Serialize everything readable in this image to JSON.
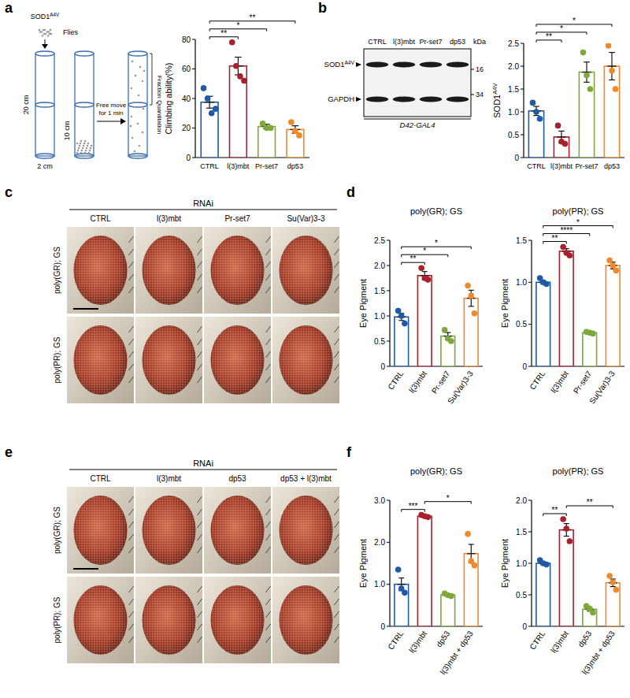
{
  "panel_labels": [
    "a",
    "b",
    "c",
    "d",
    "e",
    "f"
  ],
  "schematic": {
    "genotype": "SOD1",
    "genotype_sup": "A4V",
    "flies": "Flies",
    "height_total": "20 cm",
    "height_half": "10 cm",
    "width": "2 cm",
    "action": [
      "Free move",
      "for 1 min"
    ],
    "measure": [
      "Fraction",
      "Quantitation"
    ]
  },
  "blot": {
    "lanes": [
      "CTRL",
      "l(3)mbt",
      "Pr-set7",
      "dp53"
    ],
    "bands": [
      {
        "name": "SOD1",
        "sup": "A4V"
      },
      {
        "name": "GAPDH"
      }
    ],
    "unit": "kDa",
    "markers": [
      16,
      34
    ],
    "driver": "D42-GAL4"
  },
  "eye_panels": [
    {
      "header": "RNAi",
      "columns": [
        "CTRL",
        "l(3)mbt",
        "Pr-set7",
        "Su(Var)3-3"
      ],
      "rows": [
        "poly(GR); GS",
        "poly(PR); GS"
      ]
    },
    {
      "header": "RNAi",
      "columns": [
        "CTRL",
        "l(3)mbt",
        "dp53",
        "dp53 + l(3)mbt"
      ],
      "rows": [
        "poly(GR); GS",
        "poly(PR); GS"
      ]
    }
  ],
  "chart_data": [
    {
      "type": "bar",
      "y_label": "Climbing ability(%)",
      "categories": [
        "CTRL",
        "l(3)mbt",
        "Pr-set7",
        "dp53"
      ],
      "values": [
        37.5,
        62,
        21,
        19
      ],
      "errors": [
        4,
        6,
        1.5,
        2.5
      ],
      "points": [
        [
          47,
          40,
          30,
          33
        ],
        [
          78,
          62,
          55,
          52
        ],
        [
          23,
          20,
          20
        ],
        [
          24,
          18,
          15
        ]
      ],
      "colors": [
        "#1f5aa6",
        "#a8202c",
        "#7ea83a",
        "#f0892a"
      ],
      "ylim": [
        0,
        80
      ],
      "yticks": [
        0,
        20,
        40,
        60,
        80
      ],
      "comparisons": [
        {
          "pair": [
            0,
            1
          ],
          "label": "**"
        },
        {
          "pair": [
            0,
            2
          ],
          "label": "*"
        },
        {
          "pair": [
            0,
            3
          ],
          "label": "**"
        }
      ]
    },
    {
      "type": "bar",
      "y_label": "SOD1",
      "y_label_sup": "A4V",
      "categories": [
        "CTRL",
        "l(3)mbt",
        "Pr-set7",
        "dp53"
      ],
      "values": [
        1.02,
        0.45,
        1.87,
        2.0
      ],
      "errors": [
        0.1,
        0.13,
        0.22,
        0.3
      ],
      "points": [
        [
          1.2,
          1.0,
          0.85
        ],
        [
          0.7,
          0.35,
          0.3
        ],
        [
          2.3,
          1.8,
          1.5
        ],
        [
          2.45,
          1.9,
          1.5
        ]
      ],
      "colors": [
        "#1f5aa6",
        "#a8202c",
        "#7ea83a",
        "#f0892a"
      ],
      "ylim": [
        0,
        2.5
      ],
      "yticks": [
        0,
        0.5,
        {
          "value": 1,
          "label": "1.0"
        },
        1.5,
        {
          "value": 2,
          "label": "2.0"
        },
        2.5
      ],
      "comparisons": [
        {
          "pair": [
            0,
            1
          ],
          "label": "**"
        },
        {
          "pair": [
            0,
            2
          ],
          "label": "*"
        },
        {
          "pair": [
            0,
            3
          ],
          "label": "*"
        }
      ]
    },
    {
      "type": "bar",
      "title": "poly(GR); GS",
      "y_label": "Eye Pigment",
      "categories": [
        "CTRL",
        "l(3)mbt",
        "Pr-set7",
        "Su(Var)3-3"
      ],
      "values": [
        0.98,
        1.8,
        0.6,
        1.35
      ],
      "errors": [
        0.07,
        0.08,
        0.07,
        0.16
      ],
      "points": [
        [
          1.1,
          1.0,
          0.85
        ],
        [
          1.95,
          1.75,
          1.72
        ],
        [
          0.72,
          0.55,
          0.5
        ],
        [
          1.6,
          1.4,
          1.05
        ]
      ],
      "colors": [
        "#1f5aa6",
        "#a8202c",
        "#7ea83a",
        "#f0892a"
      ],
      "ylim": [
        0,
        2.5
      ],
      "yticks": [
        0,
        0.5,
        {
          "value": 1,
          "label": "1.0"
        },
        1.5,
        {
          "value": 2,
          "label": "2.0"
        },
        2.5
      ],
      "comparisons": [
        {
          "pair": [
            0,
            1
          ],
          "label": "**"
        },
        {
          "pair": [
            0,
            2
          ],
          "label": "*"
        },
        {
          "pair": [
            0,
            3
          ],
          "label": "*"
        }
      ]
    },
    {
      "type": "bar",
      "title": "poly(PR); GS",
      "y_label": "Eye Pigment",
      "categories": [
        "CTRL",
        "l(3)mbt",
        "Pr-set7",
        "Su(Var)3-3"
      ],
      "values": [
        1.0,
        1.37,
        0.4,
        1.2
      ],
      "errors": [
        0.02,
        0.03,
        0.01,
        0.04
      ],
      "points": [
        [
          1.05,
          1.0,
          0.98
        ],
        [
          1.42,
          1.35,
          1.32
        ],
        [
          0.41,
          0.4,
          0.39
        ],
        [
          1.26,
          1.2,
          1.14
        ]
      ],
      "colors": [
        "#1f5aa6",
        "#a8202c",
        "#7ea83a",
        "#f0892a"
      ],
      "ylim": [
        0,
        1.5
      ],
      "yticks": [
        0,
        0.5,
        {
          "value": 1,
          "label": "1.0"
        },
        1.5
      ],
      "comparisons": [
        {
          "pair": [
            0,
            1
          ],
          "label": "**"
        },
        {
          "pair": [
            0,
            2
          ],
          "label": "****"
        },
        {
          "pair": [
            0,
            3
          ],
          "label": "*"
        }
      ]
    },
    {
      "type": "bar",
      "title": "poly(GR); GS",
      "y_label": "Eye Pigment",
      "categories": [
        "CTRL",
        "l(3)mbt",
        "dp53",
        "l(3)mbt + dp53"
      ],
      "values": [
        1.0,
        2.62,
        0.75,
        1.73
      ],
      "errors": [
        0.15,
        0.02,
        0.02,
        0.22
      ],
      "points": [
        [
          1.35,
          0.9,
          0.8
        ],
        [
          2.65,
          2.62,
          2.6
        ],
        [
          0.78,
          0.74,
          0.72
        ],
        [
          2.2,
          1.55,
          1.45
        ]
      ],
      "colors": [
        "#1f5aa6",
        "#a8202c",
        "#7ea83a",
        "#f0892a"
      ],
      "ylim": [
        0,
        3
      ],
      "yticks": [
        0,
        {
          "value": 1,
          "label": "1.0"
        },
        {
          "value": 2,
          "label": "2.0"
        },
        {
          "value": 3,
          "label": "3.0"
        }
      ],
      "comparisons": [
        {
          "pair": [
            0,
            1
          ],
          "label": "***"
        },
        {
          "pair": [
            1,
            3
          ],
          "label": "*"
        }
      ]
    },
    {
      "type": "bar",
      "title": "poly(PR); GS",
      "y_label": "Eye Pigment",
      "categories": [
        "CTRL",
        "l(3)mbt",
        "dp53",
        "l(3)mbt + dp53"
      ],
      "values": [
        1.0,
        1.53,
        0.27,
        0.69
      ],
      "errors": [
        0.02,
        0.1,
        0.03,
        0.06
      ],
      "points": [
        [
          1.05,
          1.0,
          0.98
        ],
        [
          1.7,
          1.55,
          1.35
        ],
        [
          0.32,
          0.28,
          0.22
        ],
        [
          0.8,
          0.7,
          0.58
        ]
      ],
      "colors": [
        "#1f5aa6",
        "#a8202c",
        "#7ea83a",
        "#f0892a"
      ],
      "ylim": [
        0,
        2
      ],
      "yticks": [
        0,
        0.5,
        {
          "value": 1,
          "label": "1.0"
        },
        1.5,
        {
          "value": 2,
          "label": "2.0"
        }
      ],
      "comparisons": [
        {
          "pair": [
            0,
            1
          ],
          "label": "**"
        },
        {
          "pair": [
            1,
            3
          ],
          "label": "**"
        }
      ]
    }
  ]
}
